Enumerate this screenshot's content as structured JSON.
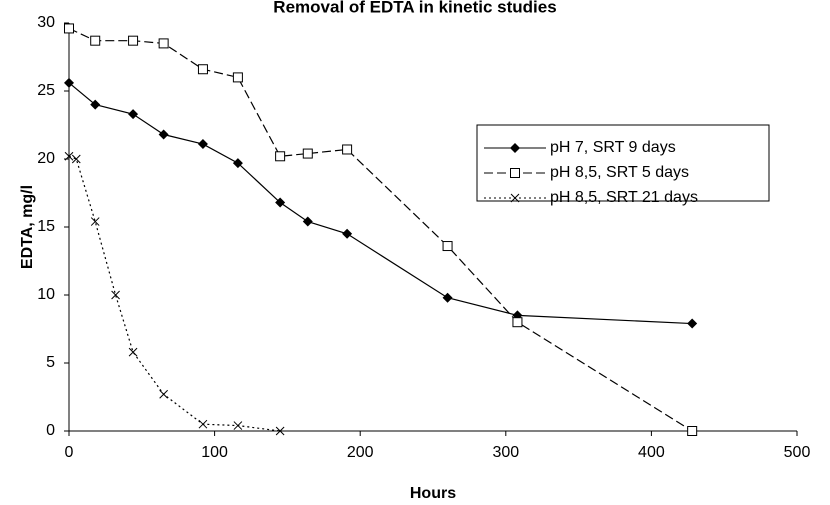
{
  "chart_data": {
    "type": "line",
    "title": "Removal of EDTA in kinetic studies",
    "x_label": "Hours",
    "y_label": "EDTA, mg/l",
    "xlim": [
      0,
      500
    ],
    "xticks": [
      0,
      100,
      200,
      300,
      400,
      500
    ],
    "ylim": [
      0,
      30
    ],
    "yticks": [
      0,
      5,
      10,
      15,
      20,
      25,
      30
    ],
    "grid": false,
    "legend": "right",
    "series": [
      {
        "name": "pH 7, SRT 9 days",
        "color": "#000000",
        "line_style": "solid",
        "marker": "diamond",
        "x": [
          0,
          18,
          44,
          65,
          92,
          116,
          145,
          164,
          191,
          260,
          308,
          428
        ],
        "values": [
          25.6,
          24,
          23.3,
          21.8,
          21.1,
          19.7,
          16.8,
          15.4,
          14.5,
          9.8,
          8.5,
          7.9
        ]
      },
      {
        "name": "pH 8,5, SRT 5 days",
        "color": "#000000",
        "line_style": "dashed",
        "marker": "square",
        "x": [
          0,
          18,
          44,
          65,
          92,
          116,
          145,
          164,
          191,
          260,
          308,
          428
        ],
        "values": [
          29.6,
          28.7,
          28.7,
          28.5,
          26.6,
          26,
          20.2,
          20.4,
          20.7,
          13.6,
          8,
          0
        ]
      },
      {
        "name": "pH 8,5, SRT 21 days",
        "color": "#000000",
        "line_style": "dotted",
        "marker": "cross",
        "x": [
          0,
          5,
          18,
          32,
          44,
          65,
          92,
          116,
          145
        ],
        "values": [
          20.2,
          20,
          15.4,
          10,
          5.8,
          2.7,
          0.5,
          0.4,
          0
        ]
      }
    ]
  }
}
